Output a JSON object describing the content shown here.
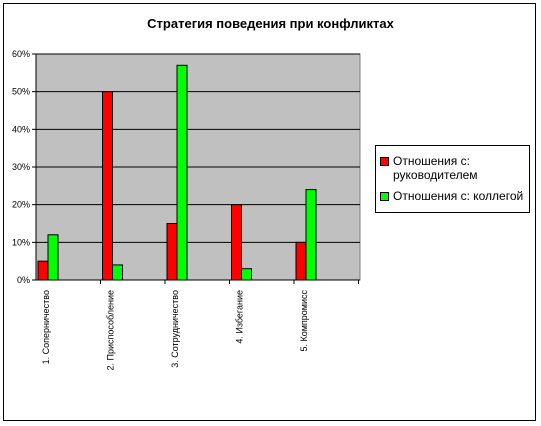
{
  "chart_data": {
    "type": "bar",
    "title": "Стратегия поведения при конфликтах",
    "categories": [
      "1. Соперничество",
      "2. Приспособление",
      "3. Сотрудничество",
      "4. Избегание",
      "5. Компромисс"
    ],
    "series": [
      {
        "name": "Отношения с: руководителем",
        "values": [
          5,
          50,
          15,
          20,
          10
        ],
        "color": "#ff0000"
      },
      {
        "name": "Отношения с: коллегой",
        "values": [
          12,
          4,
          57,
          3,
          24
        ],
        "color": "#00ff00"
      }
    ],
    "ylim": [
      0,
      60
    ],
    "yticks": [
      "0%",
      "10%",
      "20%",
      "30%",
      "40%",
      "50%",
      "60%"
    ],
    "plot_background": "#c0c0c0",
    "grid": true,
    "legend_position": "right"
  }
}
